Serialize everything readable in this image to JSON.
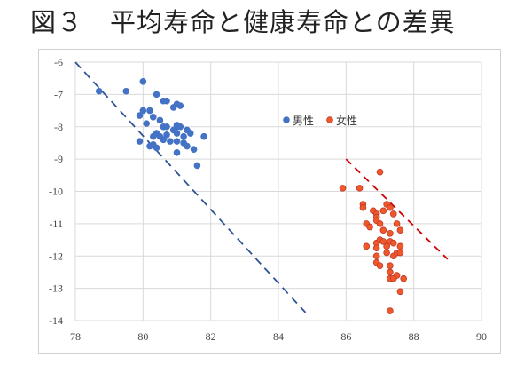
{
  "title": "図３　平均寿命と健康寿命との差異",
  "chart_data": {
    "type": "scatter",
    "title": "図３　平均寿命と健康寿命との差異",
    "xlabel": "",
    "ylabel": "",
    "xlim": [
      78,
      90
    ],
    "ylim": [
      -14,
      -6
    ],
    "xticks": [
      "78",
      "80",
      "82",
      "84",
      "86",
      "88",
      "90"
    ],
    "yticks": [
      "-6",
      "-7",
      "-8",
      "-9",
      "-10",
      "-11",
      "-12",
      "-13",
      "-14"
    ],
    "grid": true,
    "legend_position": "top-center",
    "colors": {
      "male": "#4472C4",
      "female": "#F0582A",
      "female_edge": "#C0392B",
      "male_line": "#2F5597",
      "female_line": "#D00000"
    },
    "series": [
      {
        "name": "男性",
        "points": [
          [
            78.7,
            -6.9
          ],
          [
            79.5,
            -6.9
          ],
          [
            80.0,
            -6.6
          ],
          [
            80.4,
            -7.0
          ],
          [
            80.7,
            -7.2
          ],
          [
            80.6,
            -7.2
          ],
          [
            81.0,
            -7.3
          ],
          [
            80.9,
            -7.4
          ],
          [
            81.1,
            -7.35
          ],
          [
            80.0,
            -7.5
          ],
          [
            80.2,
            -7.5
          ],
          [
            79.9,
            -7.65
          ],
          [
            80.3,
            -7.7
          ],
          [
            80.1,
            -7.9
          ],
          [
            80.5,
            -7.8
          ],
          [
            80.6,
            -8.0
          ],
          [
            80.7,
            -8.0
          ],
          [
            80.9,
            -8.1
          ],
          [
            81.0,
            -8.0
          ],
          [
            81.1,
            -8.0
          ],
          [
            81.3,
            -8.1
          ],
          [
            81.4,
            -8.2
          ],
          [
            80.4,
            -8.2
          ],
          [
            80.3,
            -8.3
          ],
          [
            80.5,
            -8.3
          ],
          [
            80.7,
            -8.25
          ],
          [
            81.0,
            -8.2
          ],
          [
            81.2,
            -8.3
          ],
          [
            79.9,
            -8.45
          ],
          [
            80.3,
            -8.55
          ],
          [
            80.4,
            -8.65
          ],
          [
            80.8,
            -8.45
          ],
          [
            81.0,
            -8.45
          ],
          [
            81.2,
            -8.5
          ],
          [
            81.3,
            -8.6
          ],
          [
            81.5,
            -8.7
          ],
          [
            81.6,
            -9.2
          ],
          [
            81.8,
            -8.3
          ],
          [
            81.0,
            -8.8
          ],
          [
            80.6,
            -8.4
          ],
          [
            80.2,
            -8.6
          ],
          [
            81.0,
            -7.95
          ]
        ],
        "trendline": [
          [
            78,
            -6
          ],
          [
            84.8,
            -13.75
          ]
        ]
      },
      {
        "name": "女性",
        "points": [
          [
            87.0,
            -9.4
          ],
          [
            85.9,
            -9.9
          ],
          [
            86.4,
            -9.9
          ],
          [
            86.5,
            -10.4
          ],
          [
            86.5,
            -10.5
          ],
          [
            87.2,
            -10.4
          ],
          [
            87.3,
            -10.5
          ],
          [
            87.1,
            -10.6
          ],
          [
            86.8,
            -10.6
          ],
          [
            86.9,
            -10.7
          ],
          [
            86.9,
            -10.8
          ],
          [
            87.4,
            -10.7
          ],
          [
            86.6,
            -11.0
          ],
          [
            86.7,
            -11.1
          ],
          [
            86.9,
            -10.9
          ],
          [
            87.0,
            -11.0
          ],
          [
            87.1,
            -11.2
          ],
          [
            87.3,
            -11.3
          ],
          [
            87.5,
            -11.0
          ],
          [
            87.6,
            -11.2
          ],
          [
            86.6,
            -11.7
          ],
          [
            86.9,
            -11.6
          ],
          [
            87.0,
            -11.5
          ],
          [
            87.1,
            -11.55
          ],
          [
            87.3,
            -11.55
          ],
          [
            87.2,
            -11.7
          ],
          [
            87.4,
            -11.6
          ],
          [
            87.6,
            -11.7
          ],
          [
            86.9,
            -11.75
          ],
          [
            87.2,
            -11.9
          ],
          [
            87.4,
            -12.0
          ],
          [
            87.5,
            -11.9
          ],
          [
            87.6,
            -11.9
          ],
          [
            86.9,
            -12.0
          ],
          [
            86.9,
            -12.2
          ],
          [
            87.3,
            -12.3
          ],
          [
            87.3,
            -12.5
          ],
          [
            87.5,
            -12.6
          ],
          [
            87.3,
            -12.7
          ],
          [
            87.4,
            -12.7
          ],
          [
            87.7,
            -12.7
          ],
          [
            87.6,
            -13.1
          ],
          [
            87.3,
            -13.7
          ],
          [
            87.0,
            -12.3
          ]
        ],
        "trendline": [
          [
            86,
            -9
          ],
          [
            89,
            -12.1
          ]
        ]
      }
    ]
  }
}
